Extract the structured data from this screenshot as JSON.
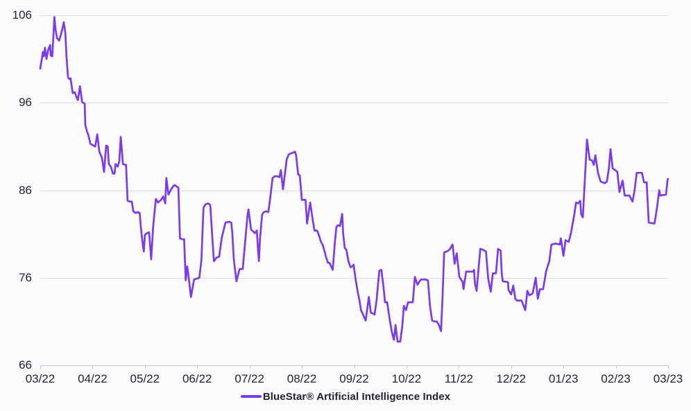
{
  "legend": {
    "label": "BlueStar® Artificial Intelligence Index"
  },
  "colors": {
    "line": "#7B3BE8",
    "grid": "#DCDCE1",
    "axis": "#C8C8CF",
    "text": "#21213A",
    "background": "#FBFBFD"
  },
  "chart_data": {
    "type": "line",
    "title": "",
    "xlabel": "",
    "ylabel": "",
    "x_tick_labels": [
      "03/22",
      "04/22",
      "05/22",
      "06/22",
      "07/22",
      "08/22",
      "09/22",
      "10/22",
      "11/22",
      "12/22",
      "01/23",
      "02/23",
      "03/23"
    ],
    "x_range_months": [
      0,
      12
    ],
    "y_ticks": [
      66,
      76,
      86,
      96,
      106
    ],
    "ylim": [
      66,
      106
    ],
    "grid": "horizontal",
    "legend_position": "bottom-center",
    "series": [
      {
        "name": "BlueStar® Artificial Intelligence Index",
        "color": "#7B3BE8",
        "points": [
          [
            0,
            99.9
          ],
          [
            0.03,
            101.0
          ],
          [
            0.05,
            101.8
          ],
          [
            0.07,
            101.3
          ],
          [
            0.09,
            102.3
          ],
          [
            0.12,
            101.0
          ],
          [
            0.15,
            102.0
          ],
          [
            0.19,
            102.6
          ],
          [
            0.2,
            101.4
          ],
          [
            0.23,
            101.3
          ],
          [
            0.25,
            103.5
          ],
          [
            0.27,
            105.8
          ],
          [
            0.29,
            104.5
          ],
          [
            0.32,
            103.4
          ],
          [
            0.36,
            103.1
          ],
          [
            0.4,
            103.9
          ],
          [
            0.42,
            104.4
          ],
          [
            0.45,
            105.2
          ],
          [
            0.48,
            104.0
          ],
          [
            0.5,
            101.5
          ],
          [
            0.53,
            98.9
          ],
          [
            0.56,
            98.7
          ],
          [
            0.58,
            98.8
          ],
          [
            0.62,
            97.1
          ],
          [
            0.66,
            97.2
          ],
          [
            0.69,
            96.7
          ],
          [
            0.72,
            96.3
          ],
          [
            0.76,
            97.9
          ],
          [
            0.8,
            96.1
          ],
          [
            0.82,
            96.0
          ],
          [
            0.85,
            95.9
          ],
          [
            0.86,
            93.5
          ],
          [
            0.89,
            92.8
          ],
          [
            0.92,
            92.3
          ],
          [
            0.96,
            91.3
          ],
          [
            0.99,
            91.2
          ],
          [
            1.02,
            91.1
          ],
          [
            1.05,
            91.0
          ],
          [
            1.09,
            92.4
          ],
          [
            1.13,
            90.4
          ],
          [
            1.18,
            89.7
          ],
          [
            1.22,
            88.1
          ],
          [
            1.26,
            91.1
          ],
          [
            1.29,
            91.0
          ],
          [
            1.31,
            89.0
          ],
          [
            1.35,
            88.7
          ],
          [
            1.39,
            87.9
          ],
          [
            1.42,
            87.9
          ],
          [
            1.44,
            89.0
          ],
          [
            1.48,
            88.7
          ],
          [
            1.51,
            89.3
          ],
          [
            1.54,
            92.1
          ],
          [
            1.58,
            89.0
          ],
          [
            1.62,
            88.9
          ],
          [
            1.64,
            88.9
          ],
          [
            1.67,
            84.8
          ],
          [
            1.71,
            84.7
          ],
          [
            1.75,
            84.7
          ],
          [
            1.78,
            83.6
          ],
          [
            1.82,
            83.4
          ],
          [
            1.86,
            83.5
          ],
          [
            1.9,
            83.4
          ],
          [
            1.92,
            82.0
          ],
          [
            1.95,
            80.2
          ],
          [
            1.98,
            79.0
          ],
          [
            2.0,
            80.9
          ],
          [
            2.04,
            81.1
          ],
          [
            2.08,
            81.2
          ],
          [
            2.12,
            78.1
          ],
          [
            2.16,
            82.0
          ],
          [
            2.21,
            85.0
          ],
          [
            2.25,
            84.6
          ],
          [
            2.31,
            84.9
          ],
          [
            2.35,
            85.3
          ],
          [
            2.39,
            84.5
          ],
          [
            2.41,
            87.4
          ],
          [
            2.45,
            85.5
          ],
          [
            2.51,
            86.2
          ],
          [
            2.55,
            86.5
          ],
          [
            2.57,
            86.6
          ],
          [
            2.61,
            86.4
          ],
          [
            2.64,
            86.3
          ],
          [
            2.67,
            80.5
          ],
          [
            2.71,
            80.4
          ],
          [
            2.75,
            80.4
          ],
          [
            2.78,
            75.7
          ],
          [
            2.81,
            77.3
          ],
          [
            2.84,
            75.9
          ],
          [
            2.88,
            73.8
          ],
          [
            2.94,
            75.8
          ],
          [
            3.04,
            76.0
          ],
          [
            3.08,
            78.0
          ],
          [
            3.12,
            84.0
          ],
          [
            3.16,
            84.4
          ],
          [
            3.21,
            84.5
          ],
          [
            3.25,
            84.3
          ],
          [
            3.29,
            80.5
          ],
          [
            3.32,
            77.9
          ],
          [
            3.37,
            78.3
          ],
          [
            3.42,
            78.4
          ],
          [
            3.47,
            80.6
          ],
          [
            3.54,
            82.3
          ],
          [
            3.61,
            82.4
          ],
          [
            3.65,
            82.3
          ],
          [
            3.67,
            81.2
          ],
          [
            3.7,
            78.1
          ],
          [
            3.75,
            75.6
          ],
          [
            3.81,
            77.0
          ],
          [
            3.87,
            77.0
          ],
          [
            3.91,
            79.7
          ],
          [
            3.96,
            83.1
          ],
          [
            3.98,
            83.8
          ],
          [
            4.03,
            81.5
          ],
          [
            4.07,
            81.3
          ],
          [
            4.1,
            81.1
          ],
          [
            4.14,
            81.4
          ],
          [
            4.16,
            79.5
          ],
          [
            4.18,
            77.9
          ],
          [
            4.2,
            80.5
          ],
          [
            4.24,
            83.2
          ],
          [
            4.27,
            83.5
          ],
          [
            4.32,
            83.6
          ],
          [
            4.36,
            83.5
          ],
          [
            4.4,
            85.3
          ],
          [
            4.44,
            87.4
          ],
          [
            4.48,
            87.6
          ],
          [
            4.53,
            87.6
          ],
          [
            4.57,
            87.5
          ],
          [
            4.6,
            88.3
          ],
          [
            4.64,
            86.1
          ],
          [
            4.68,
            88.0
          ],
          [
            4.71,
            89.5
          ],
          [
            4.75,
            90.1
          ],
          [
            4.79,
            90.2
          ],
          [
            4.83,
            90.3
          ],
          [
            4.87,
            90.4
          ],
          [
            4.89,
            90.0
          ],
          [
            4.93,
            87.8
          ],
          [
            4.96,
            87.7
          ],
          [
            5.0,
            84.9
          ],
          [
            5.07,
            84.9
          ],
          [
            5.1,
            82.2
          ],
          [
            5.16,
            84.6
          ],
          [
            5.2,
            82.9
          ],
          [
            5.24,
            81.4
          ],
          [
            5.29,
            81.4
          ],
          [
            5.33,
            80.8
          ],
          [
            5.36,
            80.2
          ],
          [
            5.4,
            79.7
          ],
          [
            5.44,
            78.9
          ],
          [
            5.46,
            78.4
          ],
          [
            5.5,
            77.7
          ],
          [
            5.53,
            77.7
          ],
          [
            5.56,
            77.3
          ],
          [
            5.59,
            76.9
          ],
          [
            5.63,
            80.0
          ],
          [
            5.66,
            81.8
          ],
          [
            5.69,
            82.0
          ],
          [
            5.73,
            81.9
          ],
          [
            5.77,
            83.3
          ],
          [
            5.79,
            81.0
          ],
          [
            5.82,
            79.4
          ],
          [
            5.85,
            79.2
          ],
          [
            5.89,
            77.9
          ],
          [
            5.93,
            77.2
          ],
          [
            5.97,
            77.3
          ],
          [
            5.99,
            77.5
          ],
          [
            6.03,
            75.7
          ],
          [
            6.07,
            74.3
          ],
          [
            6.1,
            73.5
          ],
          [
            6.13,
            72.3
          ],
          [
            6.17,
            71.8
          ],
          [
            6.19,
            71.5
          ],
          [
            6.22,
            71.1
          ],
          [
            6.24,
            72.0
          ],
          [
            6.28,
            73.8
          ],
          [
            6.32,
            72.0
          ],
          [
            6.36,
            71.9
          ],
          [
            6.39,
            71.8
          ],
          [
            6.43,
            73.5
          ],
          [
            6.48,
            76.8
          ],
          [
            6.52,
            76.9
          ],
          [
            6.56,
            75.0
          ],
          [
            6.59,
            73.2
          ],
          [
            6.63,
            73.2
          ],
          [
            6.68,
            71.2
          ],
          [
            6.72,
            69.8
          ],
          [
            6.76,
            68.9
          ],
          [
            6.79,
            70.6
          ],
          [
            6.83,
            68.7
          ],
          [
            6.88,
            68.7
          ],
          [
            6.92,
            70.5
          ],
          [
            6.95,
            72.8
          ],
          [
            6.99,
            72.3
          ],
          [
            7.03,
            73.2
          ],
          [
            7.12,
            73.2
          ],
          [
            7.16,
            76.1
          ],
          [
            7.21,
            75.2
          ],
          [
            7.25,
            75.6
          ],
          [
            7.28,
            75.8
          ],
          [
            7.37,
            75.8
          ],
          [
            7.41,
            75.7
          ],
          [
            7.45,
            72.7
          ],
          [
            7.49,
            71.1
          ],
          [
            7.54,
            71.0
          ],
          [
            7.58,
            71.0
          ],
          [
            7.62,
            70.6
          ],
          [
            7.66,
            69.9
          ],
          [
            7.69,
            74.0
          ],
          [
            7.72,
            78.9
          ],
          [
            7.77,
            79.0
          ],
          [
            7.82,
            79.2
          ],
          [
            7.88,
            79.8
          ],
          [
            7.92,
            77.6
          ],
          [
            7.96,
            78.8
          ],
          [
            8.01,
            76.1
          ],
          [
            8.05,
            75.7
          ],
          [
            8.07,
            75.6
          ],
          [
            8.09,
            74.7
          ],
          [
            8.14,
            76.7
          ],
          [
            8.18,
            76.7
          ],
          [
            8.27,
            76.7
          ],
          [
            8.29,
            76.9
          ],
          [
            8.31,
            75.3
          ],
          [
            8.34,
            74.5
          ],
          [
            8.41,
            79.3
          ],
          [
            8.46,
            79.2
          ],
          [
            8.52,
            79.0
          ],
          [
            8.56,
            76.0
          ],
          [
            8.58,
            75.3
          ],
          [
            8.61,
            74.4
          ],
          [
            8.65,
            76.5
          ],
          [
            8.71,
            76.5
          ],
          [
            8.75,
            79.3
          ],
          [
            8.8,
            79.1
          ],
          [
            8.82,
            76.5
          ],
          [
            8.84,
            75.6
          ],
          [
            8.94,
            75.5
          ],
          [
            8.95,
            74.6
          ],
          [
            9.0,
            74.1
          ],
          [
            9.04,
            75.1
          ],
          [
            9.08,
            73.6
          ],
          [
            9.11,
            73.4
          ],
          [
            9.2,
            73.4
          ],
          [
            9.27,
            72.3
          ],
          [
            9.31,
            74.5
          ],
          [
            9.35,
            74.0
          ],
          [
            9.41,
            74.2
          ],
          [
            9.47,
            76.0
          ],
          [
            9.51,
            73.6
          ],
          [
            9.55,
            74.7
          ],
          [
            9.61,
            74.7
          ],
          [
            9.67,
            76.8
          ],
          [
            9.73,
            77.9
          ],
          [
            9.77,
            79.8
          ],
          [
            9.85,
            79.9
          ],
          [
            9.93,
            79.8
          ],
          [
            9.95,
            80.5
          ],
          [
            10.0,
            78.5
          ],
          [
            10.04,
            80.3
          ],
          [
            10.1,
            80.1
          ],
          [
            10.14,
            81.0
          ],
          [
            10.2,
            83.0
          ],
          [
            10.24,
            84.6
          ],
          [
            10.28,
            84.5
          ],
          [
            10.32,
            84.8
          ],
          [
            10.34,
            83.2
          ],
          [
            10.37,
            82.9
          ],
          [
            10.45,
            91.8
          ],
          [
            10.5,
            89.5
          ],
          [
            10.55,
            89.4
          ],
          [
            10.58,
            88.9
          ],
          [
            10.61,
            90.0
          ],
          [
            10.66,
            88.0
          ],
          [
            10.71,
            87.0
          ],
          [
            10.79,
            86.8
          ],
          [
            10.83,
            87.0
          ],
          [
            10.87,
            88.6
          ],
          [
            10.9,
            90.7
          ],
          [
            10.94,
            88.5
          ],
          [
            11.01,
            88.2
          ],
          [
            11.03,
            88.1
          ],
          [
            11.07,
            85.8
          ],
          [
            11.13,
            87.1
          ],
          [
            11.17,
            85.4
          ],
          [
            11.26,
            85.4
          ],
          [
            11.32,
            84.7
          ],
          [
            11.36,
            86.0
          ],
          [
            11.4,
            88.0
          ],
          [
            11.5,
            88.0
          ],
          [
            11.54,
            86.9
          ],
          [
            11.59,
            86.9
          ],
          [
            11.63,
            82.3
          ],
          [
            11.74,
            82.2
          ],
          [
            11.79,
            84.1
          ],
          [
            11.83,
            86.0
          ],
          [
            11.85,
            85.4
          ],
          [
            11.96,
            85.5
          ],
          [
            11.99,
            87.2
          ],
          [
            12.0,
            87.3
          ]
        ]
      }
    ]
  }
}
